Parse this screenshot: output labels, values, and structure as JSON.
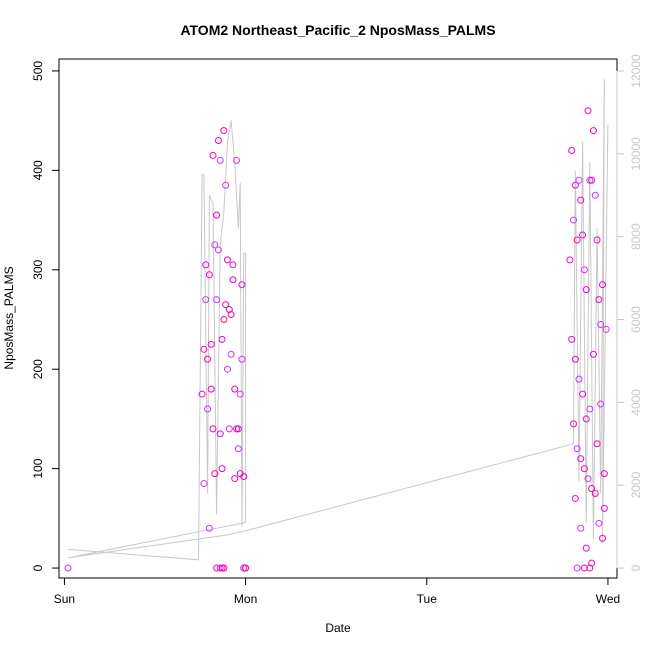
{
  "chart_data": {
    "type": "scatter",
    "title": "ATOM2 Northeast_Pacific_2 NposMass_PALMS",
    "xlabel": "Date",
    "ylabel": "NposMass_PALMS",
    "x_ticks": [
      "Sun",
      "Mon",
      "Tue",
      "Wed"
    ],
    "x_tick_positions": [
      0,
      1,
      2,
      3
    ],
    "xlim": [
      -0.03,
      3.05
    ],
    "ylim": [
      -10,
      512
    ],
    "y_ticks": [
      0,
      100,
      200,
      300,
      400,
      500
    ],
    "right_axis": {
      "ylim": [
        -240,
        12290
      ],
      "ticks": [
        0,
        2000,
        4000,
        6000,
        8000,
        10000,
        12000
      ],
      "color": "#c8c8c8"
    },
    "grid": false,
    "series": [
      {
        "role": "scatter-points",
        "marker": "open-circle",
        "colors": [
          "#cc33ff",
          "#ee00cc",
          "#ff00aa"
        ],
        "x": [
          0.02,
          0.76,
          0.77,
          0.77,
          0.78,
          0.79,
          0.8,
          0.81,
          0.82,
          0.83,
          0.84,
          0.85,
          0.86,
          0.87,
          0.88,
          0.89,
          0.9,
          0.91,
          0.92,
          0.93,
          0.94,
          0.95,
          0.96,
          0.97,
          0.98,
          0.99,
          1.0,
          0.78,
          0.8,
          0.82,
          0.84,
          0.86,
          0.88,
          0.9,
          0.92,
          0.94,
          0.96,
          0.98,
          1.0,
          0.79,
          0.81,
          0.83,
          0.85,
          0.87,
          0.89,
          0.91,
          0.93,
          0.95,
          0.97,
          0.99,
          0.84,
          0.86,
          0.87,
          0.88,
          0.99,
          2.79,
          2.8,
          2.81,
          2.82,
          2.83,
          2.84,
          2.85,
          2.86,
          2.87,
          2.88,
          2.89,
          2.9,
          2.91,
          2.92,
          2.93,
          2.94,
          2.95,
          2.96,
          2.97,
          2.98,
          2.99,
          2.8,
          2.82,
          2.84,
          2.86,
          2.88,
          2.9,
          2.92,
          2.94,
          2.96,
          2.98,
          2.81,
          2.83,
          2.85,
          2.87,
          2.89,
          2.91,
          2.93,
          2.95,
          2.97,
          2.82,
          2.85,
          2.88,
          2.91,
          2.83,
          2.87,
          2.9
        ],
        "y": [
          0,
          175,
          220,
          85,
          305,
          210,
          40,
          180,
          415,
          325,
          355,
          430,
          410,
          230,
          440,
          385,
          310,
          260,
          215,
          290,
          90,
          410,
          140,
          95,
          210,
          0,
          0,
          270,
          295,
          140,
          270,
          135,
          250,
          200,
          255,
          180,
          120,
          285,
          0,
          160,
          225,
          95,
          320,
          100,
          265,
          140,
          305,
          140,
          175,
          92,
          0,
          0,
          0,
          0,
          0,
          310,
          420,
          350,
          385,
          330,
          390,
          370,
          335,
          300,
          280,
          460,
          390,
          390,
          440,
          375,
          330,
          270,
          245,
          285,
          95,
          240,
          230,
          210,
          190,
          175,
          150,
          160,
          215,
          125,
          165,
          60,
          145,
          120,
          110,
          100,
          90,
          80,
          75,
          45,
          30,
          70,
          40,
          20,
          5,
          0,
          0,
          0
        ]
      },
      {
        "role": "line-right-axis",
        "color": "#c8c8c8",
        "x": [
          0.02,
          0.74,
          0.76,
          0.77,
          0.79,
          0.8,
          0.82,
          0.84,
          0.86,
          0.88,
          0.9,
          0.92,
          0.94,
          0.96,
          0.97,
          0.98,
          0.99,
          1.0,
          1.0,
          0.02,
          0.9,
          1.0,
          2.81,
          2.82,
          2.84,
          2.86,
          2.88,
          2.9,
          2.92,
          2.94,
          2.96,
          2.98,
          2.97,
          3.0
        ],
        "y": [
          450,
          200,
          9500,
          9500,
          1800,
          9000,
          8800,
          1300,
          7800,
          8600,
          10300,
          10800,
          9800,
          8200,
          9300,
          1000,
          7600,
          7600,
          1100,
          250,
          800,
          900,
          3000,
          9600,
          2100,
          10300,
          1100,
          9800,
          700,
          8200,
          1800,
          11800,
          600,
          10700
        ]
      }
    ]
  }
}
